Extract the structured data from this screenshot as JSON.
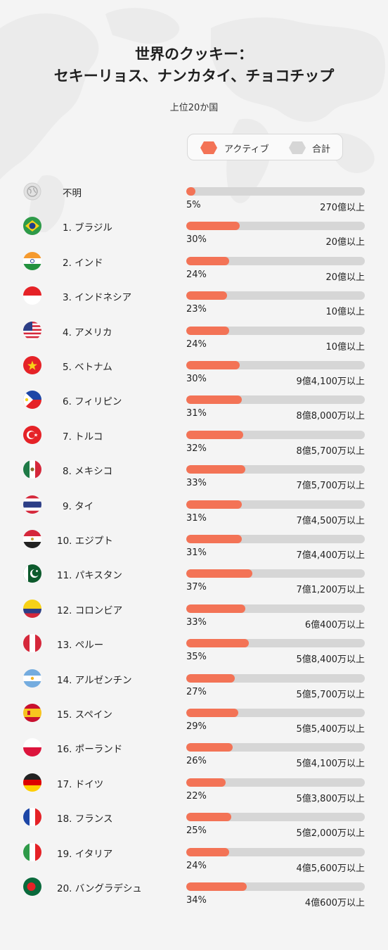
{
  "chart_data": {
    "type": "bar",
    "title_line1": "世界のクッキー：",
    "title_line2": "セキーリョス、ナンカタイ、チョコチップ",
    "subtitle": "上位20か国",
    "legend": {
      "active": "アクティブ",
      "total": "合計"
    },
    "colors": {
      "active": "#f37356",
      "total": "#d6d6d6"
    },
    "series": [
      {
        "name": "アクティブ",
        "unit": "%"
      },
      {
        "name": "合計"
      }
    ],
    "rows": [
      {
        "label": "不明",
        "flag": "globe-icon",
        "active_pct": 5,
        "pct_label": "5%",
        "total_label": "270億以上"
      },
      {
        "label": "1. ブラジル",
        "flag": "brazil",
        "active_pct": 30,
        "pct_label": "30%",
        "total_label": "20億以上"
      },
      {
        "label": "2. インド",
        "flag": "india",
        "active_pct": 24,
        "pct_label": "24%",
        "total_label": "20億以上"
      },
      {
        "label": "3. インドネシア",
        "flag": "indonesia",
        "active_pct": 23,
        "pct_label": "23%",
        "total_label": "10億以上"
      },
      {
        "label": "4. アメリカ",
        "flag": "usa",
        "active_pct": 24,
        "pct_label": "24%",
        "total_label": "10億以上"
      },
      {
        "label": "5. ベトナム",
        "flag": "vietnam",
        "active_pct": 30,
        "pct_label": "30%",
        "total_label": "9億4,100万以上"
      },
      {
        "label": "6. フィリピン",
        "flag": "philippines",
        "active_pct": 31,
        "pct_label": "31%",
        "total_label": "8億8,000万以上"
      },
      {
        "label": "7. トルコ",
        "flag": "turkey",
        "active_pct": 32,
        "pct_label": "32%",
        "total_label": "8億5,700万以上"
      },
      {
        "label": "8. メキシコ",
        "flag": "mexico",
        "active_pct": 33,
        "pct_label": "33%",
        "total_label": "7億5,700万以上"
      },
      {
        "label": "9. タイ",
        "flag": "thailand",
        "active_pct": 31,
        "pct_label": "31%",
        "total_label": "7億4,500万以上"
      },
      {
        "label": "10. エジプト",
        "flag": "egypt",
        "active_pct": 31,
        "pct_label": "31%",
        "total_label": "7億4,400万以上"
      },
      {
        "label": "11. パキスタン",
        "flag": "pakistan",
        "active_pct": 37,
        "pct_label": "37%",
        "total_label": "7億1,200万以上"
      },
      {
        "label": "12. コロンビア",
        "flag": "colombia",
        "active_pct": 33,
        "pct_label": "33%",
        "total_label": "6億400万以上"
      },
      {
        "label": "13. ペルー",
        "flag": "peru",
        "active_pct": 35,
        "pct_label": "35%",
        "total_label": "5億8,400万以上"
      },
      {
        "label": "14. アルゼンチン",
        "flag": "argentina",
        "active_pct": 27,
        "pct_label": "27%",
        "total_label": "5億5,700万以上"
      },
      {
        "label": "15. スペイン",
        "flag": "spain",
        "active_pct": 29,
        "pct_label": "29%",
        "total_label": "5億5,400万以上"
      },
      {
        "label": "16. ポーランド",
        "flag": "poland",
        "active_pct": 26,
        "pct_label": "26%",
        "total_label": "5億4,100万以上"
      },
      {
        "label": "17. ドイツ",
        "flag": "germany",
        "active_pct": 22,
        "pct_label": "22%",
        "total_label": "5億3,800万以上"
      },
      {
        "label": "18. フランス",
        "flag": "france",
        "active_pct": 25,
        "pct_label": "25%",
        "total_label": "5億2,000万以上"
      },
      {
        "label": "19. イタリア",
        "flag": "italy",
        "active_pct": 24,
        "pct_label": "24%",
        "total_label": "4億5,600万以上"
      },
      {
        "label": "20. バングラデシュ",
        "flag": "bangladesh",
        "active_pct": 34,
        "pct_label": "34%",
        "total_label": "4億600万以上"
      }
    ]
  }
}
